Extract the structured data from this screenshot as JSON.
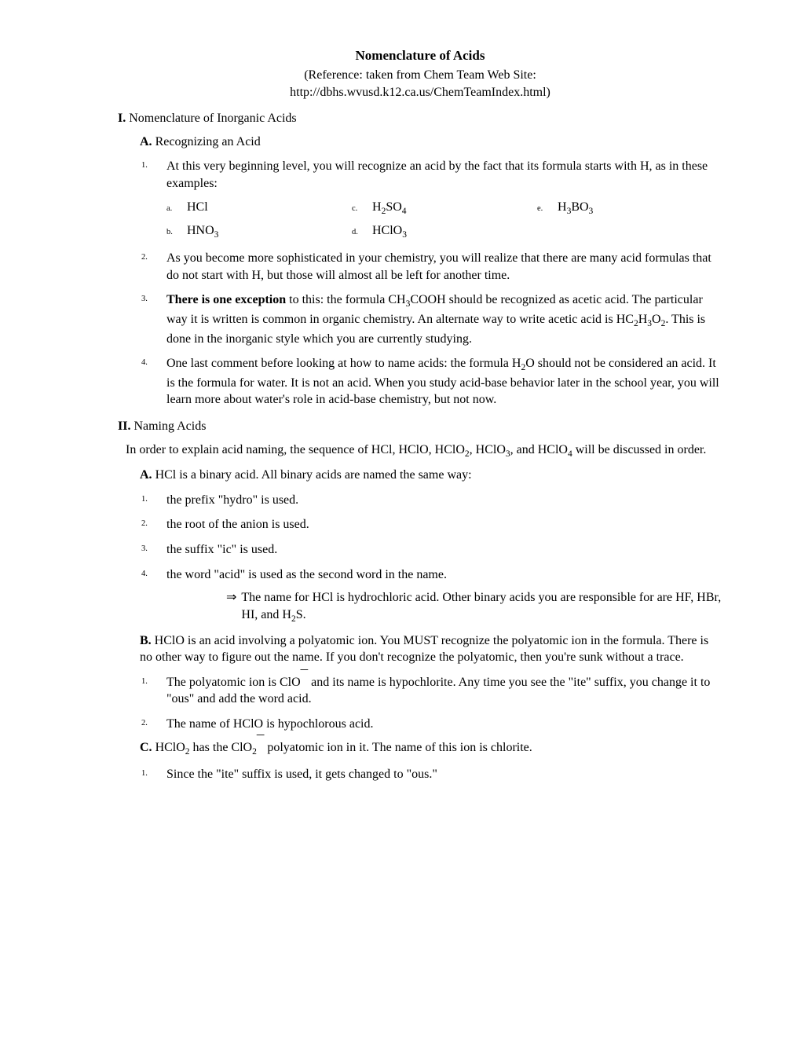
{
  "title": "Nomenclature of Acids",
  "reference_line1": "(Reference: taken from Chem Team Web Site:",
  "reference_line2": "http://dbhs.wvusd.k12.ca.us/ChemTeamIndex.html)",
  "I": {
    "label": "I.",
    "text": "Nomenclature of Inorganic Acids",
    "A": {
      "label": "A.",
      "text": "Recognizing an Acid",
      "n1": {
        "num": "1.",
        "text": "At this very beginning level, you will recognize an acid by the fact that its formula starts with H, as in these examples:"
      },
      "formulas": {
        "a": {
          "label": "a.",
          "html": "HCl"
        },
        "b": {
          "label": "b.",
          "html": "HNO<sub>3</sub>"
        },
        "c": {
          "label": "c.",
          "html": "H<sub>2</sub>SO<sub>4</sub>"
        },
        "d": {
          "label": "d.",
          "html": "HClO<sub>3</sub>"
        },
        "e": {
          "label": "e.",
          "html": "H<sub>3</sub>BO<sub>3</sub>"
        }
      },
      "n2": {
        "num": "2.",
        "text": "As you become more sophisticated in your chemistry, you will realize that there are many acid formulas that do not start with H, but those will almost all be left for another time."
      },
      "n3": {
        "num": "3.",
        "lead_bold": "There is one exception",
        "rest_html": " to this: the formula CH<sub>3</sub>COOH should be recognized as acetic acid. The particular way it is written is common in organic chemistry. An alternate way to write acetic acid is HC<sub>2</sub>H<sub>3</sub>O<sub>2</sub>. This is done in the inorganic style which you are currently studying."
      },
      "n4": {
        "num": "4.",
        "html": "One last comment before looking at how to name acids: the formula H<sub>2</sub>O should not be considered an acid. It is the formula for water. It is not an acid. When you study acid-base behavior later in the school year, you will learn more about water's role in acid-base chemistry, but not now."
      }
    }
  },
  "II": {
    "label": "II.",
    "text": "Naming Acids",
    "intro_html": "In order to explain acid naming, the sequence of HCl, HClO, HClO<sub>2</sub>, HClO<sub>3</sub>, and HClO<sub>4</sub> will be discussed in order.",
    "A": {
      "label": "A.",
      "text": "HCl is a binary acid. All binary acids are named the same way:",
      "n1": {
        "num": "1.",
        "text": "the prefix \"hydro\" is used."
      },
      "n2": {
        "num": "2.",
        "text": "the root of the anion is used."
      },
      "n3": {
        "num": "3.",
        "text": "the suffix \"ic\" is used."
      },
      "n4": {
        "num": "4.",
        "text": "the word \"acid\" is used as the second word in the name."
      },
      "arrow_html": "The name for HCl is hydrochloric acid. Other binary acids you are responsible for are HF, HBr, HI, and H<sub>2</sub>S."
    },
    "B": {
      "label": "B.",
      "text": "HClO is an acid involving a polyatomic ion. You MUST recognize the polyatomic ion in the formula. There is no other way to figure out the name. If you don't recognize the polyatomic, then you're sunk without a trace.",
      "n1": {
        "num": "1.",
        "html": "The polyatomic ion is ClO<span class=\"super-minus\">¯</span> and its name is hypochlorite. Any time you see the \"ite\" suffix, you change it to \"ous\" and add the word acid."
      },
      "n2": {
        "num": "2.",
        "text": "The name of HClO is hypochlorous acid."
      }
    },
    "C": {
      "label": "C.",
      "html": "HClO<sub>2</sub> has the ClO<sub>2</sub><span class=\"super-minus\">¯</span> polyatomic ion in it. The name of this ion is chlorite.",
      "n1": {
        "num": "1.",
        "text": "Since the \"ite\" suffix is used, it gets changed to \"ous.\""
      }
    }
  }
}
